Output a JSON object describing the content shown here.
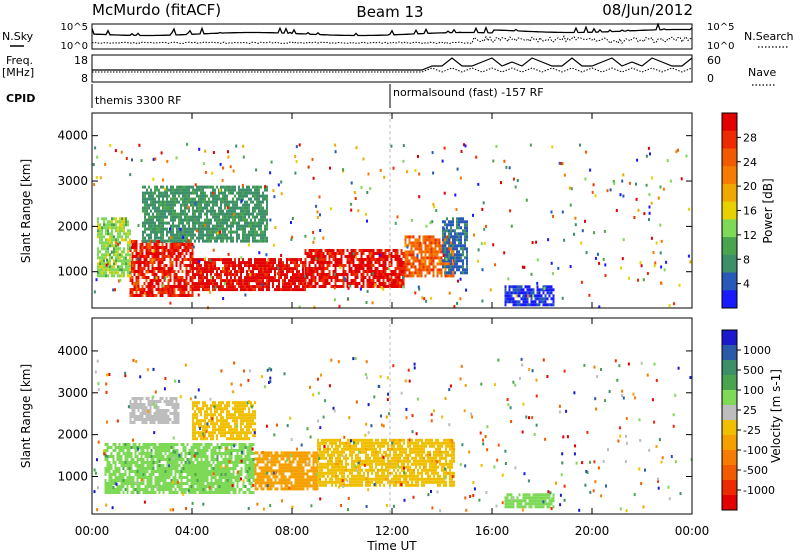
{
  "header": {
    "station": "McMurdo (fitACF)",
    "beam": "Beam 13",
    "date": "08/Jun/2012"
  },
  "noise_panel": {
    "left_label": "N.Sky",
    "right_label": "N.Search",
    "left_ticks": [
      "10^5",
      "10^0"
    ],
    "right_ticks": [
      "10^5",
      "10^0"
    ]
  },
  "freq_panel": {
    "left_label_1": "Freq.",
    "left_label_2": "[MHz]",
    "right_label": "Nave",
    "left_ticks": [
      "18",
      "8"
    ],
    "right_ticks": [
      "60",
      "0"
    ]
  },
  "cpid": {
    "label": "CPID",
    "mode_1": "themis 3300 RF",
    "mode_2": "normalsound (fast) -157 RF"
  },
  "chart_data": [
    {
      "type": "heatmap",
      "name": "power",
      "ylabel": "Slant Range [km]",
      "yticks": [
        "1000",
        "2000",
        "3000",
        "4000"
      ],
      "ylim": [
        200,
        4500
      ],
      "xlim": [
        0,
        24
      ],
      "xlabel": "",
      "colorbar": {
        "label": "Power [dB]",
        "ticks": [
          "4",
          "8",
          "12",
          "16",
          "20",
          "24",
          "28"
        ],
        "colors": [
          "#1a1aff",
          "#2659b8",
          "#3c8f68",
          "#4aa34e",
          "#7ed957",
          "#e8d100",
          "#f0a800",
          "#f57c00",
          "#f25a00",
          "#ee2b00",
          "#e30000"
        ]
      },
      "bands": [
        {
          "x": [
            1.5,
            4.0
          ],
          "y": [
            500,
            1700
          ],
          "value": 26
        },
        {
          "x": [
            4.0,
            8.5
          ],
          "y": [
            600,
            1300
          ],
          "value": 28
        },
        {
          "x": [
            8.5,
            12.5
          ],
          "y": [
            700,
            1500
          ],
          "value": 27
        },
        {
          "x": [
            12.5,
            14.5
          ],
          "y": [
            900,
            1800
          ],
          "value": 22
        },
        {
          "x": [
            0.2,
            1.5
          ],
          "y": [
            900,
            2200
          ],
          "value": 14
        },
        {
          "x": [
            2.0,
            7.0
          ],
          "y": [
            1700,
            2900
          ],
          "value": 10
        },
        {
          "x": [
            14.0,
            15.0
          ],
          "y": [
            1000,
            2200
          ],
          "value": 8
        },
        {
          "x": [
            16.5,
            18.5
          ],
          "y": [
            300,
            700
          ],
          "value": 6
        }
      ]
    },
    {
      "type": "heatmap",
      "name": "velocity",
      "ylabel": "Slant Range [km]",
      "yticks": [
        "1000",
        "2000",
        "3000",
        "4000"
      ],
      "ylim": [
        200,
        4500
      ],
      "xlim": [
        0,
        24
      ],
      "xlabel": "Time UT",
      "xticks": [
        "00:00",
        "04:00",
        "08:00",
        "12:00",
        "16:00",
        "20:00",
        "00:00"
      ],
      "colorbar": {
        "label": "Velocity [m s-1]",
        "ticks": [
          "1000",
          "500",
          "100",
          "25",
          "-25",
          "-100",
          "-500",
          "-1000"
        ],
        "colors": [
          "#1a1acc",
          "#2b5aa8",
          "#3c8f68",
          "#4aa34e",
          "#7ed957",
          "#bdbdbd",
          "#f0c000",
          "#f5a000",
          "#f57c00",
          "#f25a00",
          "#ee2b00",
          "#e30000"
        ]
      },
      "bands": [
        {
          "x": [
            0.5,
            6.5
          ],
          "y": [
            600,
            1800
          ],
          "value": 300
        },
        {
          "x": [
            6.5,
            9.0
          ],
          "y": [
            700,
            1600
          ],
          "value": -200
        },
        {
          "x": [
            9.0,
            14.5
          ],
          "y": [
            800,
            1900
          ],
          "value": -150
        },
        {
          "x": [
            1.5,
            3.5
          ],
          "y": [
            2300,
            2900
          ],
          "value": 10
        },
        {
          "x": [
            4.0,
            6.5
          ],
          "y": [
            1900,
            2800
          ],
          "value": -80
        },
        {
          "x": [
            16.5,
            18.5
          ],
          "y": [
            300,
            600
          ],
          "value": 200
        }
      ]
    }
  ]
}
